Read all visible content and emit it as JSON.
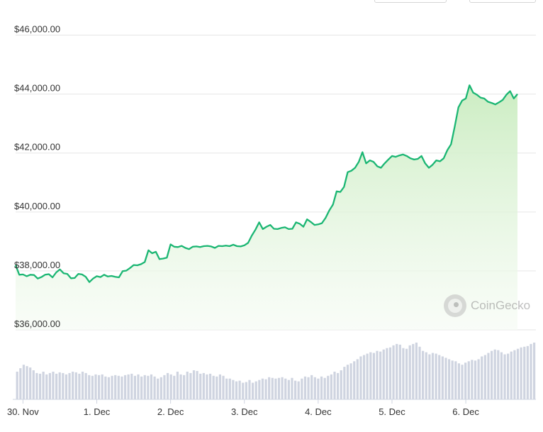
{
  "chart_data": {
    "type": "area",
    "y_tick_labels": [
      "$46,000.00",
      "$44,000.00",
      "$42,000.00",
      "$40,000.00",
      "$38,000.00",
      "$36,000.00"
    ],
    "y_ticks": [
      46000,
      44000,
      42000,
      40000,
      38000,
      36000
    ],
    "ylim": [
      36000,
      47000
    ],
    "x_tick_labels": [
      "30. Nov",
      "1. Dec",
      "2. Dec",
      "3. Dec",
      "4. Dec",
      "5. Dec",
      "6. Dec"
    ],
    "x_ticks": [
      0,
      1,
      2,
      3,
      4,
      5,
      6
    ],
    "xlim": [
      -0.1,
      6.95
    ],
    "grid": true,
    "colors": {
      "line": "#1bb673",
      "fill_top": "#c9ecbf",
      "fill_bottom": "#f5fbf3",
      "volume": "#cfd4e0",
      "grid": "#e6e6e6"
    },
    "price": [
      [
        -0.1,
        38200
      ],
      [
        -0.05,
        37870
      ],
      [
        0.0,
        37880
      ],
      [
        0.05,
        37820
      ],
      [
        0.1,
        37870
      ],
      [
        0.15,
        37860
      ],
      [
        0.2,
        37740
      ],
      [
        0.25,
        37790
      ],
      [
        0.3,
        37870
      ],
      [
        0.35,
        37890
      ],
      [
        0.4,
        37780
      ],
      [
        0.45,
        37950
      ],
      [
        0.5,
        38050
      ],
      [
        0.55,
        37920
      ],
      [
        0.6,
        37900
      ],
      [
        0.65,
        37750
      ],
      [
        0.7,
        37760
      ],
      [
        0.75,
        37900
      ],
      [
        0.8,
        37880
      ],
      [
        0.85,
        37800
      ],
      [
        0.9,
        37620
      ],
      [
        0.95,
        37740
      ],
      [
        1.0,
        37820
      ],
      [
        1.05,
        37790
      ],
      [
        1.1,
        37870
      ],
      [
        1.15,
        37810
      ],
      [
        1.2,
        37830
      ],
      [
        1.25,
        37800
      ],
      [
        1.3,
        37780
      ],
      [
        1.35,
        37990
      ],
      [
        1.4,
        38010
      ],
      [
        1.45,
        38100
      ],
      [
        1.5,
        38200
      ],
      [
        1.55,
        38190
      ],
      [
        1.6,
        38230
      ],
      [
        1.65,
        38300
      ],
      [
        1.7,
        38700
      ],
      [
        1.75,
        38600
      ],
      [
        1.8,
        38650
      ],
      [
        1.85,
        38400
      ],
      [
        1.9,
        38420
      ],
      [
        1.95,
        38450
      ],
      [
        2.0,
        38900
      ],
      [
        2.05,
        38820
      ],
      [
        2.1,
        38810
      ],
      [
        2.15,
        38850
      ],
      [
        2.2,
        38780
      ],
      [
        2.25,
        38740
      ],
      [
        2.3,
        38820
      ],
      [
        2.35,
        38830
      ],
      [
        2.4,
        38810
      ],
      [
        2.45,
        38840
      ],
      [
        2.5,
        38850
      ],
      [
        2.55,
        38830
      ],
      [
        2.6,
        38780
      ],
      [
        2.65,
        38850
      ],
      [
        2.7,
        38840
      ],
      [
        2.75,
        38860
      ],
      [
        2.8,
        38840
      ],
      [
        2.85,
        38890
      ],
      [
        2.9,
        38840
      ],
      [
        2.95,
        38830
      ],
      [
        3.0,
        38870
      ],
      [
        3.05,
        38950
      ],
      [
        3.1,
        39200
      ],
      [
        3.15,
        39400
      ],
      [
        3.2,
        39650
      ],
      [
        3.25,
        39420
      ],
      [
        3.3,
        39500
      ],
      [
        3.35,
        39560
      ],
      [
        3.4,
        39430
      ],
      [
        3.45,
        39420
      ],
      [
        3.5,
        39460
      ],
      [
        3.55,
        39480
      ],
      [
        3.6,
        39420
      ],
      [
        3.65,
        39430
      ],
      [
        3.7,
        39650
      ],
      [
        3.75,
        39600
      ],
      [
        3.8,
        39500
      ],
      [
        3.85,
        39750
      ],
      [
        3.9,
        39660
      ],
      [
        3.95,
        39560
      ],
      [
        4.0,
        39580
      ],
      [
        4.05,
        39620
      ],
      [
        4.1,
        39800
      ],
      [
        4.15,
        40050
      ],
      [
        4.2,
        40250
      ],
      [
        4.25,
        40700
      ],
      [
        4.3,
        40680
      ],
      [
        4.35,
        40850
      ],
      [
        4.4,
        41350
      ],
      [
        4.45,
        41400
      ],
      [
        4.5,
        41500
      ],
      [
        4.55,
        41700
      ],
      [
        4.6,
        42030
      ],
      [
        4.65,
        41650
      ],
      [
        4.7,
        41750
      ],
      [
        4.75,
        41700
      ],
      [
        4.8,
        41550
      ],
      [
        4.85,
        41500
      ],
      [
        4.9,
        41650
      ],
      [
        4.95,
        41780
      ],
      [
        5.0,
        41900
      ],
      [
        5.05,
        41870
      ],
      [
        5.1,
        41920
      ],
      [
        5.15,
        41950
      ],
      [
        5.2,
        41900
      ],
      [
        5.25,
        41820
      ],
      [
        5.3,
        41780
      ],
      [
        5.35,
        41800
      ],
      [
        5.4,
        41900
      ],
      [
        5.45,
        41650
      ],
      [
        5.5,
        41500
      ],
      [
        5.55,
        41600
      ],
      [
        5.6,
        41750
      ],
      [
        5.65,
        41720
      ],
      [
        5.7,
        41820
      ],
      [
        5.75,
        42100
      ],
      [
        5.8,
        42300
      ],
      [
        5.85,
        42900
      ],
      [
        5.9,
        43550
      ],
      [
        5.95,
        43780
      ],
      [
        6.0,
        43850
      ],
      [
        6.05,
        44300
      ],
      [
        6.1,
        44050
      ],
      [
        6.15,
        43980
      ],
      [
        6.2,
        43880
      ],
      [
        6.25,
        43850
      ],
      [
        6.3,
        43740
      ],
      [
        6.35,
        43700
      ],
      [
        6.4,
        43650
      ],
      [
        6.45,
        43720
      ],
      [
        6.5,
        43800
      ],
      [
        6.55,
        43980
      ],
      [
        6.6,
        44100
      ],
      [
        6.65,
        43850
      ],
      [
        6.7,
        44000
      ]
    ],
    "volume_relative": [
      0.4,
      0.45,
      0.5,
      0.48,
      0.46,
      0.42,
      0.38,
      0.37,
      0.4,
      0.36,
      0.38,
      0.4,
      0.37,
      0.39,
      0.38,
      0.36,
      0.38,
      0.4,
      0.39,
      0.37,
      0.4,
      0.38,
      0.35,
      0.34,
      0.36,
      0.35,
      0.36,
      0.33,
      0.32,
      0.34,
      0.35,
      0.34,
      0.33,
      0.35,
      0.36,
      0.37,
      0.34,
      0.36,
      0.33,
      0.35,
      0.34,
      0.36,
      0.33,
      0.3,
      0.32,
      0.35,
      0.38,
      0.36,
      0.34,
      0.4,
      0.36,
      0.35,
      0.4,
      0.38,
      0.42,
      0.41,
      0.37,
      0.38,
      0.36,
      0.37,
      0.34,
      0.33,
      0.36,
      0.34,
      0.3,
      0.3,
      0.28,
      0.26,
      0.27,
      0.24,
      0.25,
      0.28,
      0.24,
      0.26,
      0.28,
      0.3,
      0.29,
      0.32,
      0.31,
      0.3,
      0.31,
      0.32,
      0.3,
      0.28,
      0.31,
      0.27,
      0.26,
      0.3,
      0.33,
      0.32,
      0.35,
      0.32,
      0.3,
      0.33,
      0.31,
      0.34,
      0.36,
      0.4,
      0.38,
      0.42,
      0.47,
      0.5,
      0.52,
      0.55,
      0.58,
      0.62,
      0.64,
      0.66,
      0.68,
      0.67,
      0.7,
      0.69,
      0.72,
      0.74,
      0.75,
      0.78,
      0.8,
      0.79,
      0.74,
      0.73,
      0.78,
      0.8,
      0.82,
      0.76,
      0.7,
      0.68,
      0.65,
      0.67,
      0.66,
      0.64,
      0.62,
      0.6,
      0.58,
      0.56,
      0.55,
      0.52,
      0.5,
      0.53,
      0.55,
      0.57,
      0.56,
      0.58,
      0.62,
      0.64,
      0.67,
      0.7,
      0.72,
      0.71,
      0.68,
      0.65,
      0.66,
      0.69,
      0.71,
      0.73,
      0.75,
      0.76,
      0.77,
      0.8,
      0.82
    ]
  }
}
